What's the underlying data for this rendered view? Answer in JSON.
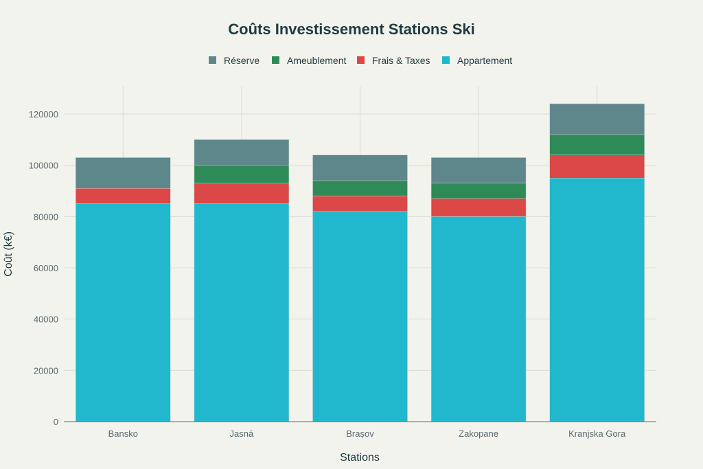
{
  "chart_data": {
    "type": "bar",
    "stacked": true,
    "title": "Coûts Investissement Stations Ski",
    "xlabel": "Stations",
    "ylabel": "Coût (k€)",
    "categories": [
      "Bansko",
      "Jasná",
      "Brașov",
      "Zakopane",
      "Kranjska Gora"
    ],
    "ylim": [
      0,
      130000
    ],
    "yticks": [
      0,
      20000,
      40000,
      60000,
      80000,
      100000,
      120000
    ],
    "grid": true,
    "legend_placement": "top-center",
    "legend_order": [
      "Réserve",
      "Ameublement",
      "Frais & Taxes",
      "Appartement"
    ],
    "series": [
      {
        "name": "Appartement",
        "color": "#21b8cd",
        "values": [
          85000,
          85000,
          82000,
          80000,
          95000
        ]
      },
      {
        "name": "Frais & Taxes",
        "color": "#dc4747",
        "values": [
          6000,
          8000,
          6000,
          7000,
          9000
        ]
      },
      {
        "name": "Ameublement",
        "color": "#2e8b57",
        "values": [
          0,
          7000,
          6000,
          6000,
          8000
        ]
      },
      {
        "name": "Réserve",
        "color": "#5e878c",
        "values": [
          12000,
          10000,
          10000,
          10000,
          12000
        ]
      }
    ]
  }
}
